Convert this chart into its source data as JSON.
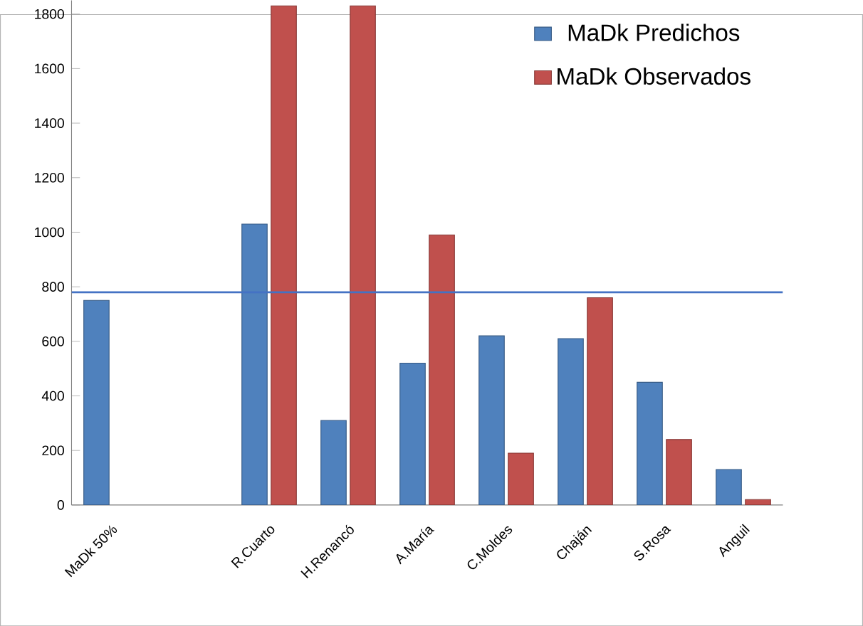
{
  "chart_data": {
    "type": "bar",
    "categories": [
      "MaDk 50%",
      null,
      "R.Cuarto",
      "H.Renancó",
      "A.María",
      "C.Moldes",
      "Chaján",
      "S.Rosa",
      "Anguil"
    ],
    "series": [
      {
        "name": "MaDk Predichos",
        "color": "#4f81bd",
        "values": [
          750,
          null,
          1030,
          310,
          520,
          620,
          610,
          450,
          130
        ]
      },
      {
        "name": "MaDk Observados",
        "color": "#c0504d",
        "values": [
          null,
          null,
          1830,
          1830,
          990,
          190,
          760,
          240,
          20
        ]
      }
    ],
    "ylim": [
      0,
      1850
    ],
    "yticks": [
      0,
      200,
      400,
      600,
      800,
      1000,
      1200,
      1400,
      1600,
      1800
    ],
    "ref_lines": [
      {
        "axis": "y",
        "value": 780,
        "color": "#4472c4"
      }
    ],
    "grid": false,
    "legend": "top right"
  }
}
